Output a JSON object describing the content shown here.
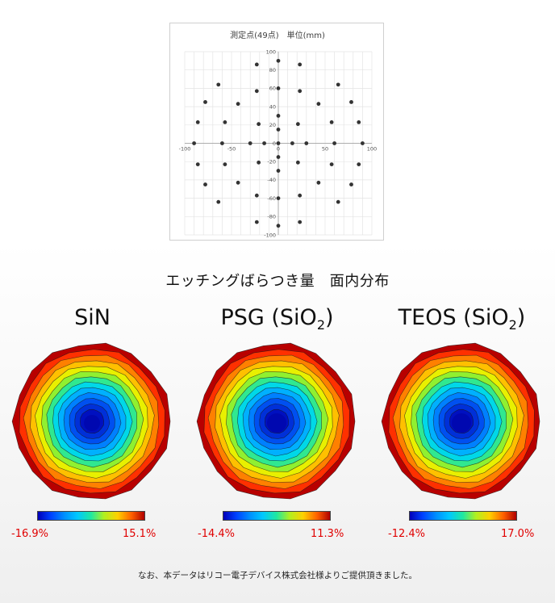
{
  "scatter": {
    "title": "測定点(49点)　単位(mm)",
    "chart_data": {
      "type": "scatter",
      "title": "測定点(49点)　単位(mm)",
      "xlim": [
        -100,
        100
      ],
      "ylim": [
        -100,
        100
      ],
      "xticks": [
        -100,
        -50,
        0,
        50,
        100
      ],
      "yticks": [
        -100,
        -80,
        -60,
        -40,
        -20,
        0,
        20,
        40,
        60,
        80,
        100
      ],
      "grid": true,
      "series": [
        {
          "marker_color": "#333333",
          "points": [
            [
              0,
              0
            ],
            [
              -15,
              0
            ],
            [
              15,
              0
            ],
            [
              0,
              15
            ],
            [
              0,
              -15
            ],
            [
              -21,
              21
            ],
            [
              21,
              21
            ],
            [
              -21,
              -21
            ],
            [
              21,
              -21
            ],
            [
              -30,
              0
            ],
            [
              30,
              0
            ],
            [
              0,
              30
            ],
            [
              0,
              -30
            ],
            [
              -43,
              43
            ],
            [
              43,
              43
            ],
            [
              -43,
              -43
            ],
            [
              43,
              -43
            ],
            [
              -60,
              0
            ],
            [
              60,
              0
            ],
            [
              0,
              60
            ],
            [
              0,
              -60
            ],
            [
              -23,
              57
            ],
            [
              23,
              57
            ],
            [
              -23,
              -57
            ],
            [
              23,
              -57
            ],
            [
              -57,
              23
            ],
            [
              57,
              23
            ],
            [
              -57,
              -23
            ],
            [
              57,
              -23
            ],
            [
              -90,
              0
            ],
            [
              90,
              0
            ],
            [
              0,
              90
            ],
            [
              0,
              -90
            ],
            [
              -64,
              64
            ],
            [
              64,
              64
            ],
            [
              -64,
              -64
            ],
            [
              64,
              -64
            ],
            [
              -23,
              86
            ],
            [
              23,
              86
            ],
            [
              -23,
              -86
            ],
            [
              23,
              -86
            ],
            [
              -86,
              23
            ],
            [
              86,
              23
            ],
            [
              -86,
              -23
            ],
            [
              86,
              -23
            ],
            [
              -78,
              45
            ],
            [
              78,
              45
            ],
            [
              -78,
              -45
            ],
            [
              78,
              -45
            ]
          ]
        }
      ]
    }
  },
  "heading": "エッチングばらつき量　面内分布",
  "maps": [
    {
      "name": "SiN",
      "sub": "",
      "suffix": "",
      "min_label": "-16.9%",
      "max_label": "15.1%"
    },
    {
      "name": "PSG (SiO",
      "sub": "2",
      "suffix": ")",
      "min_label": "-14.4%",
      "max_label": "11.3%"
    },
    {
      "name": "TEOS (SiO",
      "sub": "2",
      "suffix": ")",
      "min_label": "-12.4%",
      "max_label": "17.0%"
    }
  ],
  "footnote": "なお、本データはリコー電子デバイス株式会社様よりご提供頂きました。"
}
